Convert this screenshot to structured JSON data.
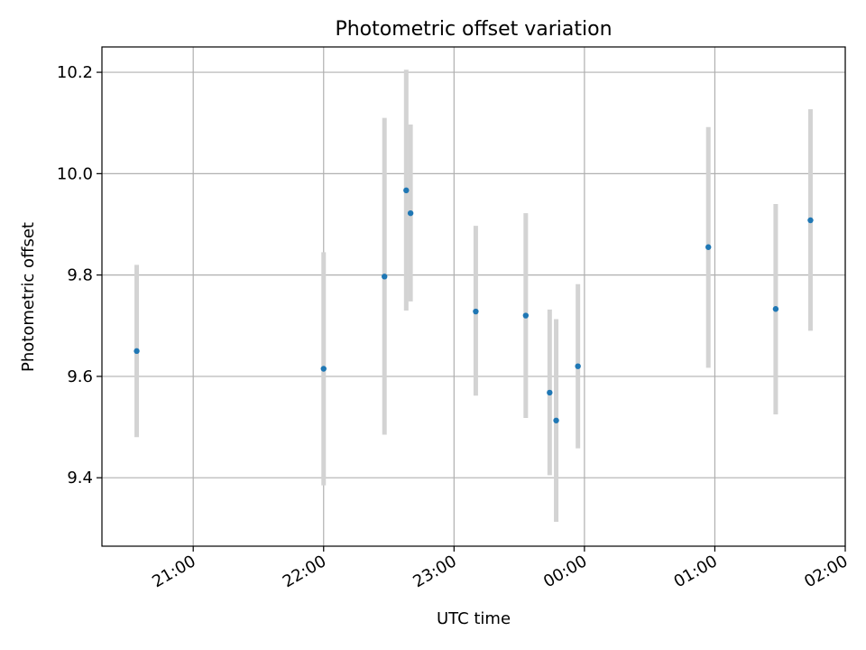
{
  "chart_data": {
    "type": "scatter",
    "title": "Photometric offset variation",
    "xlabel": "UTC time",
    "ylabel": "Photometric offset",
    "xlim": [
      "2024-01-01T20:18:00",
      "2024-01-02T02:00:00"
    ],
    "ylim": [
      9.265,
      10.25
    ],
    "grid": true,
    "x_ticks": [
      {
        "value": "2024-01-01T21:00:00",
        "label": "21:00"
      },
      {
        "value": "2024-01-01T22:00:00",
        "label": "22:00"
      },
      {
        "value": "2024-01-01T23:00:00",
        "label": "23:00"
      },
      {
        "value": "2024-01-02T00:00:00",
        "label": "00:00"
      },
      {
        "value": "2024-01-02T01:00:00",
        "label": "01:00"
      },
      {
        "value": "2024-01-02T02:00:00",
        "label": "02:00"
      }
    ],
    "y_ticks": [
      {
        "value": 9.4,
        "label": "9.4"
      },
      {
        "value": 9.6,
        "label": "9.6"
      },
      {
        "value": 9.8,
        "label": "9.8"
      },
      {
        "value": 10.0,
        "label": "10.0"
      },
      {
        "value": 10.2,
        "label": "10.2"
      }
    ],
    "points": [
      {
        "x": "2024-01-01T20:34:00",
        "y": 9.65,
        "y_low": 9.48,
        "y_high": 9.82
      },
      {
        "x": "2024-01-01T22:00:00",
        "y": 9.615,
        "y_low": 9.385,
        "y_high": 9.845
      },
      {
        "x": "2024-01-01T22:28:00",
        "y": 9.797,
        "y_low": 9.485,
        "y_high": 10.11
      },
      {
        "x": "2024-01-01T22:38:00",
        "y": 9.967,
        "y_low": 9.73,
        "y_high": 10.205
      },
      {
        "x": "2024-01-01T22:40:00",
        "y": 9.922,
        "y_low": 9.748,
        "y_high": 10.097
      },
      {
        "x": "2024-01-01T23:10:00",
        "y": 9.728,
        "y_low": 9.562,
        "y_high": 9.897
      },
      {
        "x": "2024-01-01T23:33:00",
        "y": 9.72,
        "y_low": 9.518,
        "y_high": 9.922
      },
      {
        "x": "2024-01-01T23:44:00",
        "y": 9.568,
        "y_low": 9.405,
        "y_high": 9.732
      },
      {
        "x": "2024-01-01T23:47:00",
        "y": 9.513,
        "y_low": 9.313,
        "y_high": 9.713
      },
      {
        "x": "2024-01-01T23:57:00",
        "y": 9.62,
        "y_low": 9.458,
        "y_high": 9.782
      },
      {
        "x": "2024-01-02T00:57:00",
        "y": 9.855,
        "y_low": 9.617,
        "y_high": 10.092
      },
      {
        "x": "2024-01-02T01:28:00",
        "y": 9.733,
        "y_low": 9.525,
        "y_high": 9.94
      },
      {
        "x": "2024-01-02T01:44:00",
        "y": 9.908,
        "y_low": 9.69,
        "y_high": 10.127
      }
    ],
    "colors": {
      "marker": "#1f77b4",
      "errorbar": "#d3d3d3",
      "grid": "#b0b0b0",
      "axes": "#000000"
    }
  }
}
